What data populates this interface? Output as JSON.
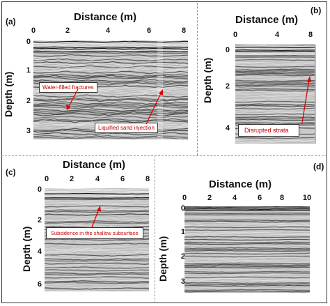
{
  "panels": {
    "a": {
      "letter": "(a)",
      "x_title": "Distance (m)",
      "y_title": "Depth (m)",
      "x_ticks": [
        "0",
        "2",
        "4",
        "6",
        "8"
      ],
      "y_ticks": [
        "0",
        "1",
        "2",
        "3"
      ],
      "annotations": [
        "Water-filled fractures",
        "Liquified sand injection"
      ]
    },
    "b": {
      "letter": "(b)",
      "x_title": "Distance (m)",
      "y_title": "Depth (m)",
      "x_ticks": [
        "0",
        "4",
        "8"
      ],
      "y_ticks": [
        "0",
        "2",
        "4"
      ],
      "annotations": [
        "Disrupted strata"
      ]
    },
    "c": {
      "letter": "(c)",
      "x_title": "Distance (m)",
      "y_title": "Depth (m)",
      "x_ticks": [
        "0",
        "2",
        "4",
        "6",
        "8"
      ],
      "y_ticks": [
        "0",
        "2",
        "4",
        "6"
      ],
      "annotations": [
        "Subsidence in the shallow subsurface"
      ]
    },
    "d": {
      "letter": "(d)",
      "x_title": "Distance (m)",
      "y_title": "Depth (m)",
      "x_ticks": [
        "0",
        "2",
        "4",
        "6",
        "8",
        "10"
      ],
      "y_ticks": [
        "0",
        "1",
        "2",
        "3"
      ],
      "annotations": []
    }
  },
  "colors": {
    "annotation_text": "#c00000",
    "arrow": "#e00000",
    "radargram_dark": "#1a1a1a",
    "radargram_light": "#d9d9d9"
  }
}
